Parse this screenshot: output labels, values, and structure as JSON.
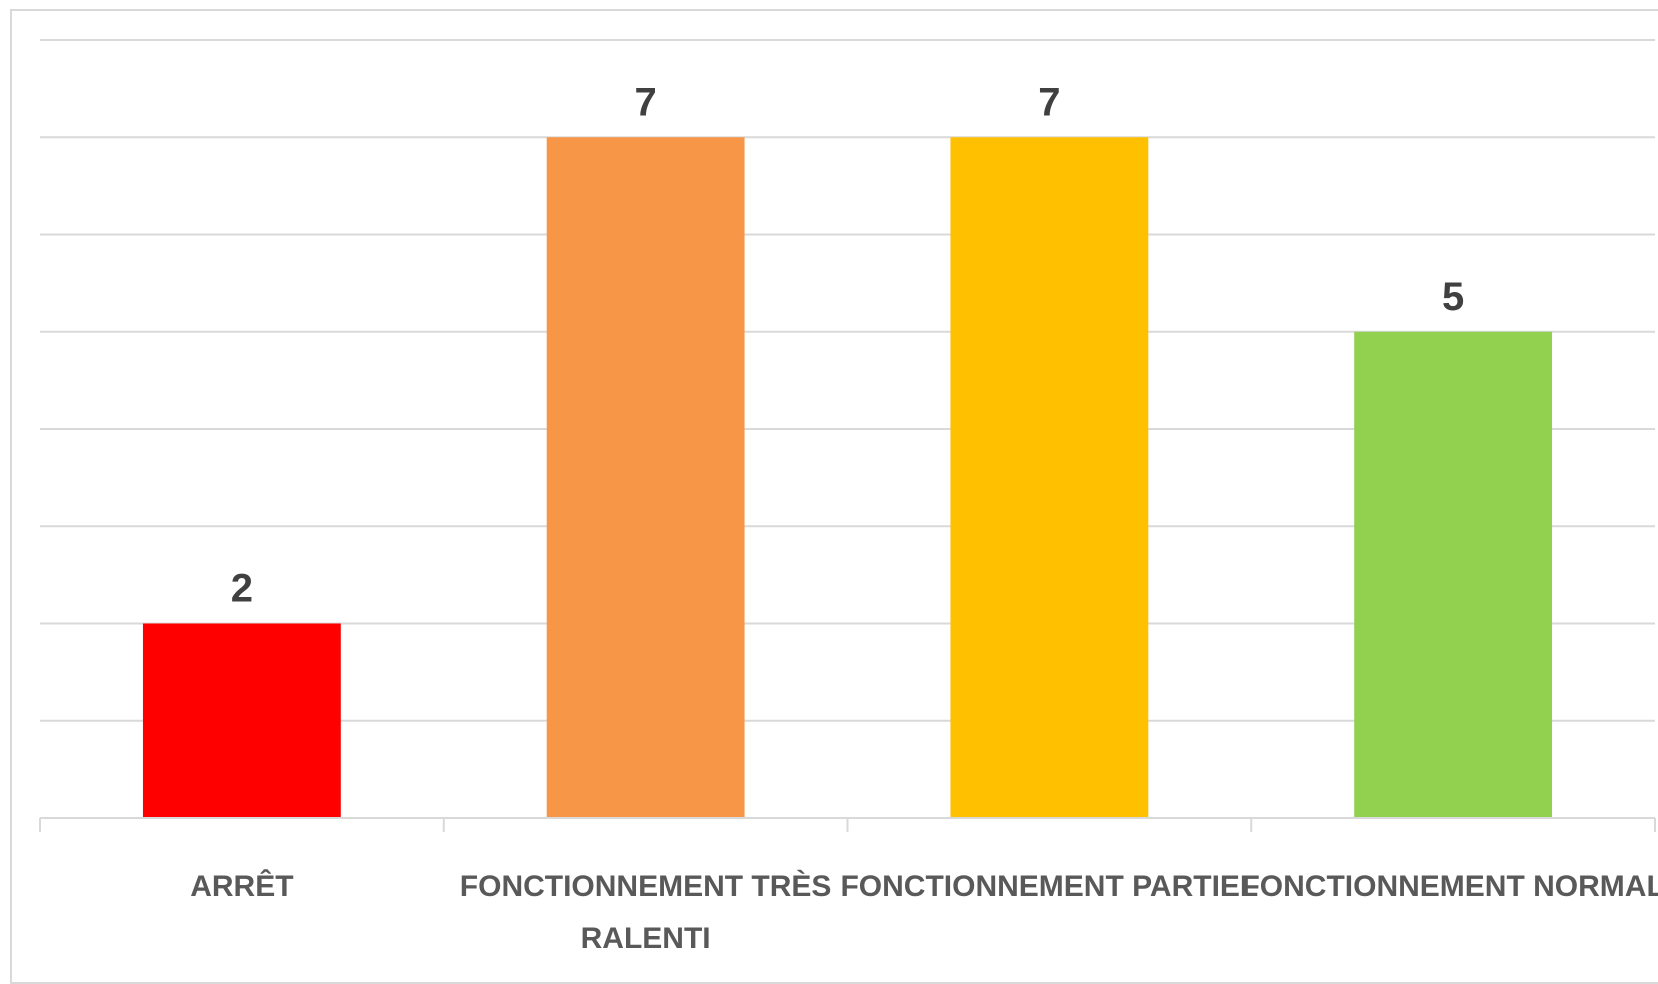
{
  "chart_data": {
    "type": "bar",
    "categories": [
      "ARRÊT",
      "FONCTIONNEMENT TRÈS RALENTI",
      "FONCTIONNEMENT PARTIEL",
      "FONCTIONNEMENT NORMAL"
    ],
    "category_lines": [
      [
        "ARRÊT"
      ],
      [
        "FONCTIONNEMENT TRÈS",
        "RALENTI"
      ],
      [
        "FONCTIONNEMENT PARTIEL"
      ],
      [
        "FONCTIONNEMENT NORMAL"
      ]
    ],
    "values": [
      2,
      7,
      7,
      5
    ],
    "data_labels": [
      "2",
      "7",
      "7",
      "5"
    ],
    "colors": [
      "#ff0000",
      "#f79646",
      "#ffc000",
      "#92d050"
    ],
    "ylim": [
      0,
      8
    ],
    "y_gridlines": [
      0,
      1,
      2,
      3,
      4,
      5,
      6,
      7,
      8
    ],
    "grid": true,
    "legend": "none",
    "title": "",
    "xlabel": "",
    "ylabel": ""
  }
}
